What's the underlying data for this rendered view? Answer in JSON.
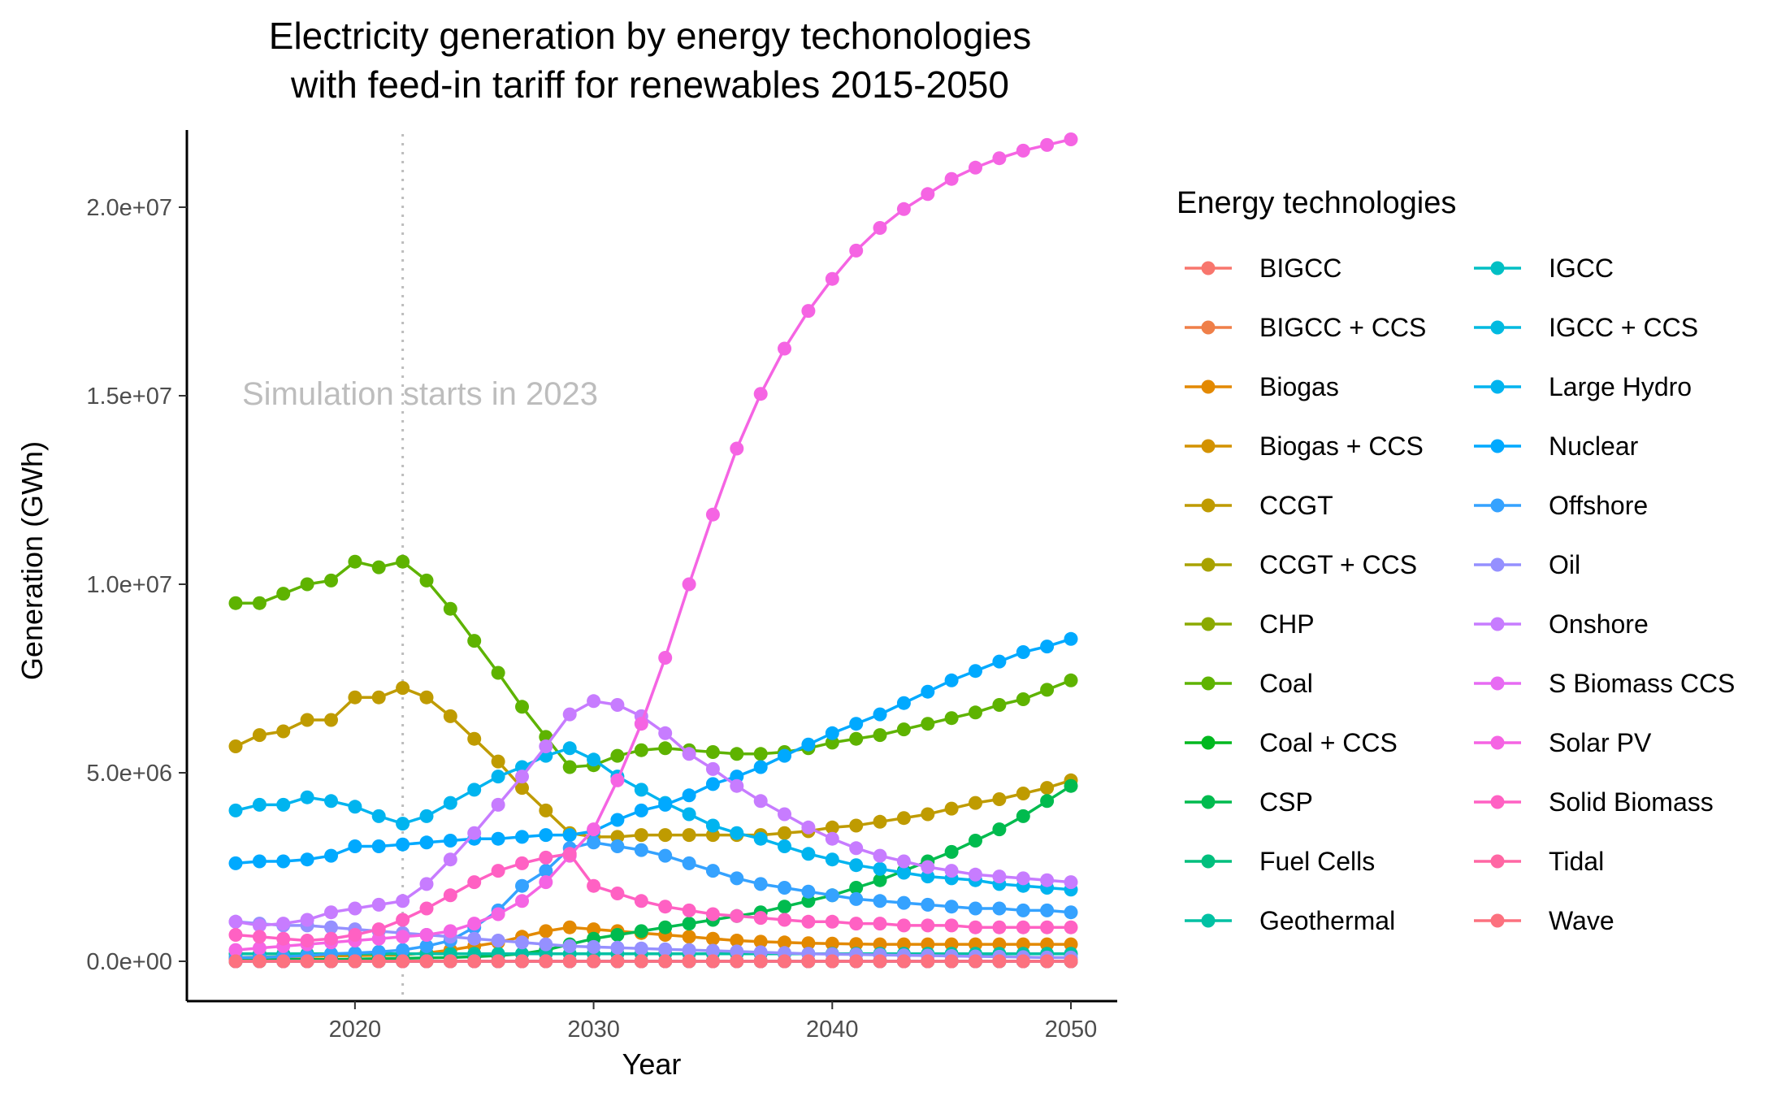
{
  "chart_data": {
    "type": "line",
    "title": "Electricity generation by energy techonologies\nwith feed-in tariff for renewables 2015-2050",
    "xlabel": "Year",
    "ylabel": "Generation (GWh)",
    "xlim": [
      2015,
      2050
    ],
    "ylim": [
      0,
      22000000
    ],
    "xticks": [
      2020,
      2030,
      2040,
      2050
    ],
    "yticks": [
      0,
      5000000,
      10000000,
      15000000,
      20000000
    ],
    "ytick_labels": [
      "0.0e+00",
      "5.0e+06",
      "1.0e+07",
      "1.5e+07",
      "2.0e+07"
    ],
    "grid": false,
    "legend_title": "Energy technologies",
    "legend_position": "right",
    "annotation": {
      "text": "Simulation starts in 2023",
      "vline_x": 2022
    },
    "x": [
      2015,
      2016,
      2017,
      2018,
      2019,
      2020,
      2021,
      2022,
      2023,
      2024,
      2025,
      2026,
      2027,
      2028,
      2029,
      2030,
      2031,
      2032,
      2033,
      2034,
      2035,
      2036,
      2037,
      2038,
      2039,
      2040,
      2041,
      2042,
      2043,
      2044,
      2045,
      2046,
      2047,
      2048,
      2049,
      2050
    ],
    "series": [
      {
        "name": "BIGCC",
        "color": "#F8766D",
        "values": [
          0,
          0,
          0,
          0,
          0,
          0,
          0,
          0,
          0,
          0,
          0,
          0,
          0,
          0,
          0,
          0,
          0,
          0,
          0,
          0,
          0,
          0,
          0,
          0,
          0,
          0,
          0,
          0,
          0,
          0,
          0,
          0,
          0,
          0,
          0,
          0
        ]
      },
      {
        "name": "BIGCC + CCS",
        "color": "#EF7F49",
        "values": [
          0,
          0,
          0,
          0,
          0,
          0,
          0,
          0,
          0,
          0,
          0,
          0,
          0,
          0,
          0,
          0,
          0,
          0,
          0,
          0,
          0,
          0,
          0,
          0,
          0,
          0,
          0,
          0,
          0,
          0,
          0,
          0,
          0,
          0,
          0,
          0
        ]
      },
      {
        "name": "Biogas",
        "color": "#E38900",
        "values": [
          100000,
          110000,
          120000,
          130000,
          140000,
          150000,
          160000,
          170000,
          220000,
          300000,
          400000,
          500000,
          650000,
          800000,
          900000,
          850000,
          800000,
          750000,
          700000,
          650000,
          600000,
          550000,
          520000,
          500000,
          480000,
          470000,
          460000,
          450000,
          450000,
          450000,
          450000,
          450000,
          450000,
          450000,
          450000,
          450000
        ]
      },
      {
        "name": "Biogas + CCS",
        "color": "#D39200",
        "values": [
          0,
          0,
          0,
          0,
          0,
          0,
          0,
          0,
          0,
          0,
          0,
          0,
          0,
          0,
          0,
          0,
          0,
          0,
          0,
          0,
          0,
          0,
          0,
          0,
          0,
          0,
          0,
          0,
          0,
          0,
          0,
          0,
          0,
          0,
          0,
          0
        ]
      },
      {
        "name": "CCGT",
        "color": "#BF9B00",
        "values": [
          5700000,
          6000000,
          6100000,
          6400000,
          6400000,
          7000000,
          7000000,
          7250000,
          7000000,
          6500000,
          5900000,
          5300000,
          4600000,
          4000000,
          3400000,
          3300000,
          3300000,
          3350000,
          3350000,
          3350000,
          3350000,
          3350000,
          3350000,
          3400000,
          3450000,
          3550000,
          3600000,
          3700000,
          3800000,
          3900000,
          4050000,
          4200000,
          4300000,
          4450000,
          4600000,
          4800000
        ]
      },
      {
        "name": "CCGT + CCS",
        "color": "#A8A200",
        "values": [
          0,
          0,
          0,
          0,
          0,
          0,
          0,
          0,
          0,
          0,
          0,
          0,
          0,
          0,
          0,
          0,
          0,
          0,
          0,
          0,
          0,
          0,
          0,
          0,
          0,
          0,
          0,
          0,
          0,
          0,
          0,
          0,
          0,
          0,
          0,
          0
        ]
      },
      {
        "name": "CHP",
        "color": "#8BAA00",
        "values": [
          0,
          0,
          0,
          0,
          0,
          0,
          0,
          0,
          0,
          0,
          0,
          0,
          0,
          0,
          0,
          0,
          0,
          0,
          0,
          0,
          0,
          0,
          0,
          0,
          0,
          0,
          0,
          0,
          0,
          0,
          0,
          0,
          0,
          0,
          0,
          0
        ]
      },
      {
        "name": "Coal",
        "color": "#5EB300",
        "values": [
          9500000,
          9500000,
          9750000,
          10000000,
          10100000,
          10600000,
          10450000,
          10600000,
          10100000,
          9350000,
          8500000,
          7650000,
          6750000,
          5950000,
          5150000,
          5200000,
          5450000,
          5600000,
          5650000,
          5600000,
          5550000,
          5500000,
          5500000,
          5550000,
          5650000,
          5800000,
          5900000,
          6000000,
          6150000,
          6300000,
          6450000,
          6600000,
          6800000,
          6950000,
          7200000,
          7450000
        ]
      },
      {
        "name": "Coal + CCS",
        "color": "#00B81F",
        "values": [
          0,
          0,
          0,
          0,
          0,
          0,
          0,
          0,
          0,
          0,
          0,
          0,
          0,
          0,
          0,
          0,
          0,
          0,
          0,
          0,
          0,
          0,
          0,
          0,
          0,
          0,
          0,
          0,
          0,
          0,
          0,
          0,
          0,
          0,
          0,
          0
        ]
      },
      {
        "name": "CSP",
        "color": "#00BB4E",
        "values": [
          50000,
          50000,
          50000,
          50000,
          50000,
          60000,
          70000,
          80000,
          90000,
          100000,
          120000,
          150000,
          200000,
          300000,
          450000,
          600000,
          700000,
          800000,
          900000,
          1000000,
          1100000,
          1200000,
          1300000,
          1450000,
          1600000,
          1750000,
          1950000,
          2150000,
          2400000,
          2650000,
          2900000,
          3200000,
          3500000,
          3850000,
          4250000,
          4650000
        ]
      },
      {
        "name": "Fuel Cells",
        "color": "#00BF7D",
        "values": [
          0,
          0,
          0,
          0,
          0,
          0,
          0,
          0,
          0,
          0,
          0,
          0,
          0,
          0,
          0,
          0,
          0,
          0,
          0,
          0,
          0,
          0,
          0,
          0,
          0,
          0,
          0,
          0,
          0,
          0,
          0,
          0,
          0,
          0,
          0,
          0
        ]
      },
      {
        "name": "Geothermal",
        "color": "#00C1A3",
        "values": [
          200000,
          200000,
          200000,
          200000,
          200000,
          200000,
          200000,
          200000,
          200000,
          200000,
          200000,
          200000,
          200000,
          200000,
          200000,
          200000,
          200000,
          200000,
          200000,
          200000,
          200000,
          200000,
          200000,
          200000,
          200000,
          200000,
          200000,
          200000,
          200000,
          200000,
          200000,
          200000,
          200000,
          200000,
          200000,
          200000
        ]
      },
      {
        "name": "IGCC",
        "color": "#00BFC4",
        "values": [
          0,
          0,
          0,
          0,
          0,
          0,
          0,
          0,
          0,
          0,
          0,
          0,
          0,
          0,
          0,
          0,
          0,
          0,
          0,
          0,
          0,
          0,
          0,
          0,
          0,
          0,
          0,
          0,
          0,
          0,
          0,
          0,
          0,
          0,
          0,
          0
        ]
      },
      {
        "name": "IGCC + CCS",
        "color": "#00BAE0",
        "values": [
          0,
          0,
          0,
          0,
          0,
          0,
          0,
          0,
          0,
          0,
          0,
          0,
          0,
          0,
          0,
          0,
          0,
          0,
          0,
          0,
          0,
          0,
          0,
          0,
          0,
          0,
          0,
          0,
          0,
          0,
          0,
          0,
          0,
          0,
          0,
          0
        ]
      },
      {
        "name": "Large Hydro",
        "color": "#00B4EF",
        "values": [
          4000000,
          4150000,
          4150000,
          4350000,
          4250000,
          4100000,
          3850000,
          3650000,
          3850000,
          4200000,
          4550000,
          4900000,
          5150000,
          5450000,
          5650000,
          5350000,
          4900000,
          4550000,
          4200000,
          3900000,
          3600000,
          3400000,
          3250000,
          3050000,
          2850000,
          2700000,
          2550000,
          2450000,
          2350000,
          2250000,
          2200000,
          2150000,
          2050000,
          2000000,
          1950000,
          1900000
        ]
      },
      {
        "name": "Nuclear",
        "color": "#00A9FF",
        "values": [
          2600000,
          2650000,
          2650000,
          2700000,
          2800000,
          3050000,
          3050000,
          3100000,
          3150000,
          3200000,
          3250000,
          3250000,
          3300000,
          3350000,
          3350000,
          3450000,
          3750000,
          4000000,
          4150000,
          4400000,
          4700000,
          4900000,
          5150000,
          5450000,
          5750000,
          6050000,
          6300000,
          6550000,
          6850000,
          7150000,
          7450000,
          7700000,
          7950000,
          8200000,
          8350000,
          8550000
        ]
      },
      {
        "name": "Offshore",
        "color": "#35A2FF",
        "values": [
          100000,
          100000,
          120000,
          150000,
          200000,
          220000,
          250000,
          300000,
          400000,
          550000,
          900000,
          1350000,
          2000000,
          2400000,
          3000000,
          3150000,
          3050000,
          2950000,
          2800000,
          2600000,
          2400000,
          2200000,
          2050000,
          1950000,
          1850000,
          1750000,
          1650000,
          1600000,
          1550000,
          1500000,
          1450000,
          1400000,
          1400000,
          1350000,
          1350000,
          1300000
        ]
      },
      {
        "name": "Oil",
        "color": "#9590FF",
        "values": [
          1050000,
          1000000,
          950000,
          950000,
          900000,
          850000,
          800000,
          750000,
          700000,
          650000,
          600000,
          550000,
          500000,
          450000,
          400000,
          380000,
          360000,
          340000,
          320000,
          300000,
          280000,
          260000,
          240000,
          220000,
          200000,
          190000,
          180000,
          170000,
          160000,
          150000,
          140000,
          130000,
          120000,
          110000,
          100000,
          100000
        ]
      },
      {
        "name": "Onshore",
        "color": "#C77CFF",
        "values": [
          1050000,
          950000,
          1000000,
          1100000,
          1300000,
          1400000,
          1500000,
          1600000,
          2050000,
          2700000,
          3400000,
          4150000,
          4900000,
          5700000,
          6550000,
          6900000,
          6800000,
          6500000,
          6050000,
          5500000,
          5100000,
          4650000,
          4250000,
          3900000,
          3550000,
          3250000,
          3000000,
          2800000,
          2650000,
          2500000,
          2400000,
          2300000,
          2250000,
          2200000,
          2150000,
          2100000
        ]
      },
      {
        "name": "S Biomass CCS",
        "color": "#E76BF3",
        "values": [
          0,
          0,
          0,
          0,
          0,
          0,
          0,
          0,
          0,
          0,
          0,
          0,
          0,
          0,
          0,
          0,
          0,
          0,
          0,
          0,
          0,
          0,
          0,
          0,
          0,
          0,
          0,
          0,
          0,
          0,
          0,
          0,
          0,
          0,
          0,
          0
        ]
      },
      {
        "name": "Solar PV",
        "color": "#F564E3",
        "values": [
          300000,
          350000,
          400000,
          450000,
          500000,
          550000,
          600000,
          650000,
          700000,
          800000,
          1000000,
          1250000,
          1600000,
          2100000,
          2800000,
          3500000,
          4800000,
          6300000,
          8050000,
          10000000,
          11850000,
          13600000,
          15050000,
          16250000,
          17250000,
          18100000,
          18850000,
          19450000,
          19950000,
          20350000,
          20750000,
          21050000,
          21300000,
          21500000,
          21650000,
          21800000
        ]
      },
      {
        "name": "Solid Biomass",
        "color": "#FF61C3",
        "values": [
          700000,
          650000,
          600000,
          550000,
          600000,
          700000,
          850000,
          1100000,
          1400000,
          1750000,
          2100000,
          2400000,
          2600000,
          2750000,
          2850000,
          2000000,
          1800000,
          1600000,
          1450000,
          1350000,
          1250000,
          1200000,
          1150000,
          1100000,
          1050000,
          1050000,
          1000000,
          1000000,
          950000,
          950000,
          950000,
          900000,
          900000,
          900000,
          900000,
          900000
        ]
      },
      {
        "name": "Tidal",
        "color": "#FF67A4",
        "values": [
          0,
          0,
          0,
          0,
          0,
          0,
          0,
          0,
          0,
          0,
          0,
          0,
          0,
          0,
          0,
          0,
          0,
          0,
          0,
          0,
          0,
          0,
          0,
          0,
          0,
          0,
          0,
          0,
          0,
          0,
          0,
          0,
          0,
          0,
          0,
          0
        ]
      },
      {
        "name": "Wave",
        "color": "#FC717F",
        "values": [
          0,
          0,
          0,
          0,
          0,
          0,
          0,
          0,
          0,
          0,
          0,
          0,
          0,
          0,
          0,
          0,
          0,
          0,
          0,
          0,
          0,
          0,
          0,
          0,
          0,
          0,
          0,
          0,
          0,
          0,
          0,
          0,
          0,
          0,
          0,
          0
        ]
      }
    ]
  }
}
